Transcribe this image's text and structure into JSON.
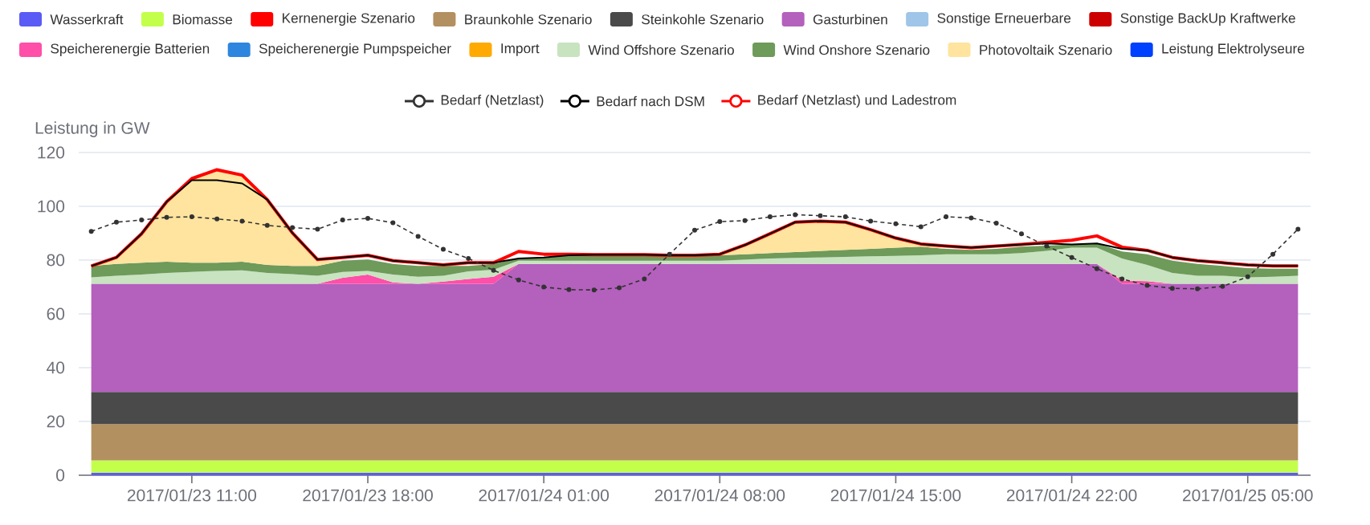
{
  "chart_data": {
    "type": "area",
    "stacked": true,
    "ylabel": "Leistung in GW",
    "legend": "top",
    "grid": "y",
    "x": [
      "2017-01-23T07:00",
      "2017-01-23T08:00",
      "2017-01-23T09:00",
      "2017-01-23T10:00",
      "2017-01-23T11:00",
      "2017-01-23T12:00",
      "2017-01-23T13:00",
      "2017-01-23T14:00",
      "2017-01-23T15:00",
      "2017-01-23T16:00",
      "2017-01-23T17:00",
      "2017-01-23T18:00",
      "2017-01-23T19:00",
      "2017-01-23T20:00",
      "2017-01-23T21:00",
      "2017-01-23T22:00",
      "2017-01-23T23:00",
      "2017-01-24T00:00",
      "2017-01-24T01:00",
      "2017-01-24T02:00",
      "2017-01-24T03:00",
      "2017-01-24T04:00",
      "2017-01-24T05:00",
      "2017-01-24T06:00",
      "2017-01-24T07:00",
      "2017-01-24T08:00",
      "2017-01-24T09:00",
      "2017-01-24T10:00",
      "2017-01-24T11:00",
      "2017-01-24T12:00",
      "2017-01-24T13:00",
      "2017-01-24T14:00",
      "2017-01-24T15:00",
      "2017-01-24T16:00",
      "2017-01-24T17:00",
      "2017-01-24T18:00",
      "2017-01-24T19:00",
      "2017-01-24T20:00",
      "2017-01-24T21:00",
      "2017-01-24T22:00",
      "2017-01-24T23:00",
      "2017-01-25T00:00",
      "2017-01-25T01:00",
      "2017-01-25T02:00",
      "2017-01-25T03:00",
      "2017-01-25T04:00",
      "2017-01-25T05:00",
      "2017-01-25T06:00",
      "2017-01-25T07:00"
    ],
    "xlim": [
      "2017-01-23T06:30",
      "2017-01-25T07:30"
    ],
    "xticks": [
      {
        "value": "2017-01-23T11:00",
        "label": "2017/01/23 11:00"
      },
      {
        "value": "2017-01-23T18:00",
        "label": "2017/01/23 18:00"
      },
      {
        "value": "2017-01-24T01:00",
        "label": "2017/01/24 01:00"
      },
      {
        "value": "2017-01-24T08:00",
        "label": "2017/01/24 08:00"
      },
      {
        "value": "2017-01-24T15:00",
        "label": "2017/01/24 15:00"
      },
      {
        "value": "2017-01-24T22:00",
        "label": "2017/01/24 22:00"
      },
      {
        "value": "2017-01-25T05:00",
        "label": "2017/01/25 05:00"
      }
    ],
    "ylim": [
      0,
      120
    ],
    "yticks": [
      0,
      20,
      40,
      60,
      80,
      100,
      120
    ],
    "series": [
      {
        "name": "Wasserkraft",
        "color": "#5b5bf5",
        "values": [
          1,
          1,
          1,
          1,
          1,
          1,
          1,
          1,
          1,
          1,
          1,
          1,
          1,
          1,
          1,
          1,
          1,
          1,
          1,
          1,
          1,
          1,
          1,
          1,
          1,
          1,
          1,
          1,
          1,
          1,
          1,
          1,
          1,
          1,
          1,
          1,
          1,
          1,
          1,
          1,
          1,
          1,
          1,
          1,
          1,
          1,
          1,
          1,
          1
        ]
      },
      {
        "name": "Biomasse",
        "color": "#c3ff4a",
        "values": [
          4.5,
          4.5,
          4.5,
          4.5,
          4.5,
          4.5,
          4.5,
          4.5,
          4.5,
          4.5,
          4.5,
          4.5,
          4.5,
          4.5,
          4.5,
          4.5,
          4.5,
          4.5,
          4.5,
          4.5,
          4.5,
          4.5,
          4.5,
          4.5,
          4.5,
          4.5,
          4.5,
          4.5,
          4.5,
          4.5,
          4.5,
          4.5,
          4.5,
          4.5,
          4.5,
          4.5,
          4.5,
          4.5,
          4.5,
          4.5,
          4.5,
          4.5,
          4.5,
          4.5,
          4.5,
          4.5,
          4.5,
          4.5,
          4.5
        ]
      },
      {
        "name": "Kernenergie Szenario",
        "color": "#ff0000",
        "values": [
          null,
          null,
          null,
          null,
          null,
          null,
          null,
          null,
          null,
          null,
          null,
          null,
          null,
          null,
          null,
          null,
          null,
          null,
          null,
          null,
          null,
          null,
          null,
          null,
          null,
          null,
          null,
          null,
          null,
          null,
          null,
          null,
          null,
          null,
          null,
          null,
          null,
          null,
          null,
          null,
          null,
          null,
          null,
          null,
          null,
          null,
          null,
          null,
          null
        ]
      },
      {
        "name": "Braunkohle Szenario",
        "color": "#b39060",
        "values": [
          13.5,
          13.5,
          13.5,
          13.5,
          13.5,
          13.5,
          13.5,
          13.5,
          13.5,
          13.5,
          13.5,
          13.5,
          13.5,
          13.5,
          13.5,
          13.5,
          13.5,
          13.5,
          13.5,
          13.5,
          13.5,
          13.5,
          13.5,
          13.5,
          13.5,
          13.5,
          13.5,
          13.5,
          13.5,
          13.5,
          13.5,
          13.5,
          13.5,
          13.5,
          13.5,
          13.5,
          13.5,
          13.5,
          13.5,
          13.5,
          13.5,
          13.5,
          13.5,
          13.5,
          13.5,
          13.5,
          13.5,
          13.5,
          13.5
        ]
      },
      {
        "name": "Steinkohle Szenario",
        "color": "#4a4a4a",
        "values": [
          12,
          12,
          12,
          12,
          12,
          12,
          12,
          12,
          12,
          12,
          12,
          12,
          12,
          12,
          12,
          12,
          12,
          12,
          12,
          12,
          12,
          12,
          12,
          12,
          12,
          12,
          12,
          12,
          12,
          12,
          12,
          12,
          12,
          12,
          12,
          12,
          12,
          12,
          12,
          12,
          12,
          12,
          12,
          12,
          12,
          12,
          12,
          12,
          12
        ]
      },
      {
        "name": "Gasturbinen",
        "color": "#b460bd",
        "values": [
          40.2,
          40.2,
          40.2,
          40.2,
          40.2,
          40.2,
          40.2,
          40.2,
          40.2,
          40.2,
          40.2,
          40.2,
          40.2,
          40.2,
          40.2,
          40.2,
          40.2,
          47.6,
          47.6,
          47.6,
          47.6,
          47.6,
          47.6,
          47.6,
          47.6,
          47.6,
          47.6,
          47.6,
          47.6,
          47.6,
          47.6,
          47.6,
          47.6,
          47.6,
          47.6,
          47.6,
          47.6,
          47.6,
          47.6,
          47.6,
          47.6,
          40.2,
          40.2,
          40.2,
          40.2,
          40.2,
          40.2,
          40.2,
          40.2
        ]
      },
      {
        "name": "Sonstige Erneuerbare",
        "color": "#9fc5e8",
        "values": [
          null,
          null,
          null,
          null,
          null,
          null,
          null,
          null,
          null,
          null,
          null,
          null,
          null,
          null,
          null,
          null,
          null,
          null,
          null,
          null,
          null,
          null,
          null,
          null,
          null,
          null,
          null,
          null,
          null,
          null,
          null,
          null,
          null,
          null,
          null,
          null,
          null,
          null,
          null,
          null,
          null,
          null,
          null,
          null,
          null,
          null,
          null,
          null,
          null
        ]
      },
      {
        "name": "Sonstige BackUp Kraftwerke",
        "color": "#cc0000",
        "values": [
          null,
          null,
          null,
          null,
          null,
          null,
          null,
          null,
          null,
          null,
          null,
          null,
          null,
          null,
          null,
          null,
          null,
          null,
          null,
          null,
          null,
          null,
          null,
          null,
          null,
          null,
          null,
          null,
          null,
          null,
          null,
          null,
          null,
          null,
          null,
          null,
          null,
          null,
          null,
          null,
          null,
          null,
          null,
          null,
          null,
          null,
          null,
          null,
          null
        ]
      },
      {
        "name": "Speicherenergie Batterien",
        "color": "#ff4fa8",
        "values": [
          0,
          0,
          0,
          0,
          0,
          0,
          0,
          0,
          0,
          0,
          2.2,
          3.4,
          0.5,
          0,
          0.8,
          1.8,
          2.6,
          0,
          0,
          0,
          0,
          0,
          0,
          0,
          0,
          0,
          0,
          0,
          0,
          0,
          0,
          0,
          0,
          0,
          0,
          0,
          0,
          0,
          0,
          0,
          0,
          1.2,
          1.0,
          0,
          0,
          0,
          0,
          0,
          0
        ]
      },
      {
        "name": "Speicherenergie Pumpspeicher",
        "color": "#2e86de",
        "values": [
          null,
          null,
          null,
          null,
          null,
          null,
          null,
          null,
          null,
          null,
          null,
          null,
          null,
          null,
          null,
          null,
          null,
          null,
          null,
          null,
          null,
          null,
          null,
          null,
          null,
          null,
          null,
          null,
          null,
          null,
          null,
          null,
          null,
          null,
          null,
          null,
          null,
          null,
          null,
          null,
          null,
          null,
          null,
          null,
          null,
          null,
          null,
          null,
          null
        ]
      },
      {
        "name": "Import",
        "color": "#ffaa00",
        "values": [
          null,
          null,
          null,
          null,
          null,
          null,
          null,
          null,
          null,
          null,
          null,
          null,
          null,
          null,
          null,
          null,
          null,
          null,
          null,
          null,
          null,
          null,
          null,
          null,
          null,
          null,
          null,
          null,
          null,
          null,
          null,
          null,
          null,
          null,
          null,
          null,
          null,
          null,
          null,
          null,
          null,
          null,
          null,
          null,
          null,
          null,
          null,
          null,
          null
        ]
      },
      {
        "name": "Wind Offshore Szenario",
        "color": "#c8e3c0",
        "values": [
          2.4,
          3.0,
          3.4,
          4.0,
          4.4,
          4.8,
          5.0,
          4.0,
          3.6,
          3.0,
          2.2,
          1.4,
          2.9,
          2.6,
          2.2,
          2.8,
          2.6,
          1.2,
          1.2,
          1.2,
          1.2,
          1.2,
          1.2,
          1.2,
          1.2,
          1.2,
          1.6,
          2.0,
          2.2,
          2.4,
          2.6,
          2.8,
          3.0,
          3.2,
          3.6,
          3.6,
          3.6,
          4.0,
          4.8,
          6.0,
          6.0,
          8.2,
          6.0,
          4.0,
          3.0,
          3.0,
          2.4,
          2.6,
          3.0
        ]
      },
      {
        "name": "Wind Onshore Szenario",
        "color": "#6e9a5a",
        "values": [
          4.2,
          4.4,
          4.4,
          4.2,
          3.4,
          3.0,
          3.2,
          3.0,
          3.0,
          3.6,
          4.2,
          4.2,
          4.0,
          4.0,
          3.6,
          2.0,
          2.2,
          0.8,
          1.2,
          2.0,
          2.0,
          2.0,
          2.0,
          2.0,
          2.0,
          2.0,
          2.0,
          2.0,
          2.2,
          2.4,
          2.6,
          2.8,
          3.0,
          3.2,
          2.0,
          1.6,
          2.0,
          2.4,
          2.0,
          1.2,
          1.6,
          2.6,
          4.0,
          4.6,
          4.4,
          3.6,
          3.4,
          3.0,
          2.6
        ]
      },
      {
        "name": "Photovoltaik Szenario",
        "color": "#fee49e",
        "values": [
          0,
          2.4,
          10.8,
          22.3,
          31.3,
          34.6,
          32.2,
          24.3,
          12.3,
          2.0,
          0,
          0,
          0,
          0,
          0,
          0,
          0,
          0,
          0,
          0,
          0,
          0,
          0,
          0,
          0,
          0.4,
          3.4,
          7.2,
          11.1,
          11.1,
          10.3,
          7.1,
          3.6,
          1.0,
          0,
          0,
          0,
          0,
          0,
          0,
          0,
          0,
          0,
          0,
          0,
          0,
          0,
          0,
          0
        ]
      },
      {
        "name": "Leistung Elektrolyseure",
        "color": "#0040ff",
        "values": [
          null,
          null,
          null,
          null,
          null,
          null,
          null,
          null,
          null,
          null,
          null,
          null,
          null,
          null,
          null,
          null,
          null,
          null,
          null,
          null,
          null,
          null,
          null,
          null,
          null,
          null,
          null,
          null,
          null,
          null,
          null,
          null,
          null,
          null,
          null,
          null,
          null,
          null,
          null,
          null,
          null,
          null,
          null,
          null,
          null,
          null,
          null,
          null,
          null
        ]
      },
      {
        "name": "Bedarf (Netzlast)",
        "type": "line",
        "color": "#333333",
        "line_style": "dashed",
        "marker": "circle",
        "values": [
          90.7,
          94.1,
          94.9,
          95.9,
          96.1,
          95.3,
          94.5,
          92.9,
          92.1,
          91.5,
          94.9,
          95.5,
          93.9,
          88.8,
          84,
          80.6,
          76.2,
          72.6,
          70,
          69,
          68.9,
          69.7,
          73,
          82.2,
          91.1,
          94.3,
          94.7,
          96.1,
          96.9,
          96.5,
          96.1,
          94.5,
          93.5,
          92.4,
          96.1,
          95.7,
          93.7,
          89.8,
          85.2,
          81,
          76.8,
          73,
          70.6,
          69.5,
          69.3,
          70.2,
          73.8,
          82.2,
          91.5
        ]
      },
      {
        "name": "Bedarf nach DSM",
        "type": "line",
        "color": "#000000",
        "line_style": "solid",
        "values": [
          77.8,
          81,
          89.8,
          101.7,
          109.7,
          109.7,
          108.5,
          102.5,
          90.1,
          80.2,
          81,
          81.8,
          79.8,
          79,
          78.2,
          79,
          79,
          80.6,
          81,
          81.8,
          82,
          82,
          82,
          81.8,
          81.8,
          82.2,
          85.6,
          89.8,
          94.1,
          94.5,
          94.1,
          91.3,
          88.2,
          86,
          85.2,
          84.6,
          85.2,
          85.8,
          86.2,
          85.8,
          86.2,
          84.2,
          83.6,
          81,
          79.8,
          79,
          78.2,
          77.8,
          77.8
        ]
      },
      {
        "name": "Bedarf (Netzlast) und Ladestrom",
        "type": "line",
        "color": "#ff0000",
        "line_style": "solid",
        "values": [
          77.8,
          81,
          89.8,
          101.7,
          110.3,
          113.6,
          111.6,
          102.5,
          90.1,
          80.2,
          81,
          81.8,
          79.8,
          79,
          78.2,
          79,
          79,
          83.2,
          82.2,
          82.2,
          82,
          82,
          82,
          81.8,
          81.8,
          82.2,
          85.6,
          89.8,
          94.1,
          94.5,
          94.1,
          91.3,
          88.2,
          86,
          85.2,
          84.6,
          85.2,
          85.8,
          86.6,
          87.4,
          89,
          84.8,
          83.6,
          81,
          79.8,
          79,
          78.2,
          77.8,
          77.8
        ]
      }
    ]
  }
}
